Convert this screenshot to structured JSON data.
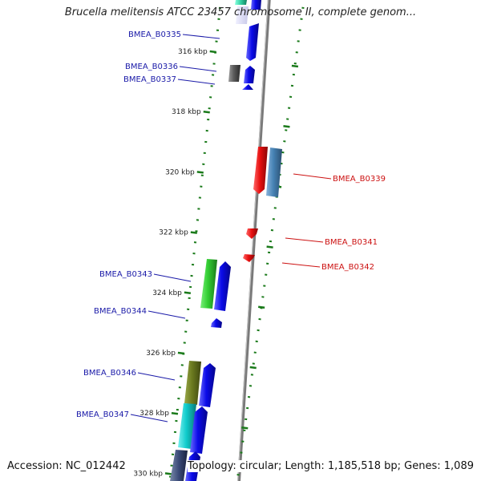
{
  "title": "Brucella melitensis ATCC 23457 chromosome II, complete genom...",
  "footer": {
    "accession": "Accession: NC_012442",
    "topology": "Topology: circular; Length: 1,185,518 bp; Genes: 1,089"
  },
  "colors": {
    "backbone": "#8a8a8a",
    "tick": "#1a7a1a",
    "left_label": "#1a1aa8",
    "right_label": "#cc1111",
    "blue_gene": "#0a0ae8",
    "red_gene": "#e81010"
  },
  "scale": {
    "unit": "kbp",
    "ticks": [
      {
        "kbp": 316,
        "label": "316 kbp"
      },
      {
        "kbp": 318,
        "label": "318 kbp"
      },
      {
        "kbp": 320,
        "label": "320 kbp"
      },
      {
        "kbp": 322,
        "label": "322 kbp"
      },
      {
        "kbp": 324,
        "label": "324 kbp"
      },
      {
        "kbp": 326,
        "label": "326 kbp"
      },
      {
        "kbp": 328,
        "label": "328 kbp"
      },
      {
        "kbp": 330,
        "label": "330 kbp"
      }
    ]
  },
  "gene_labels": [
    {
      "id": "BMEA_B0335",
      "side": "left",
      "kbp": 315.6
    },
    {
      "id": "BMEA_B0336",
      "side": "left",
      "kbp": 316.6
    },
    {
      "id": "BMEA_B0337",
      "side": "left",
      "kbp": 317.0
    },
    {
      "id": "BMEA_B0339",
      "side": "right",
      "kbp": 320.2
    },
    {
      "id": "BMEA_B0341",
      "side": "right",
      "kbp": 322.3
    },
    {
      "id": "BMEA_B0342",
      "side": "right",
      "kbp": 323.1
    },
    {
      "id": "BMEA_B0343",
      "side": "left",
      "kbp": 323.6
    },
    {
      "id": "BMEA_B0344",
      "side": "left",
      "kbp": 324.8
    },
    {
      "id": "BMEA_B0346",
      "side": "left",
      "kbp": 326.7
    },
    {
      "id": "BMEA_B0347",
      "side": "left",
      "kbp": 328.1
    }
  ]
}
